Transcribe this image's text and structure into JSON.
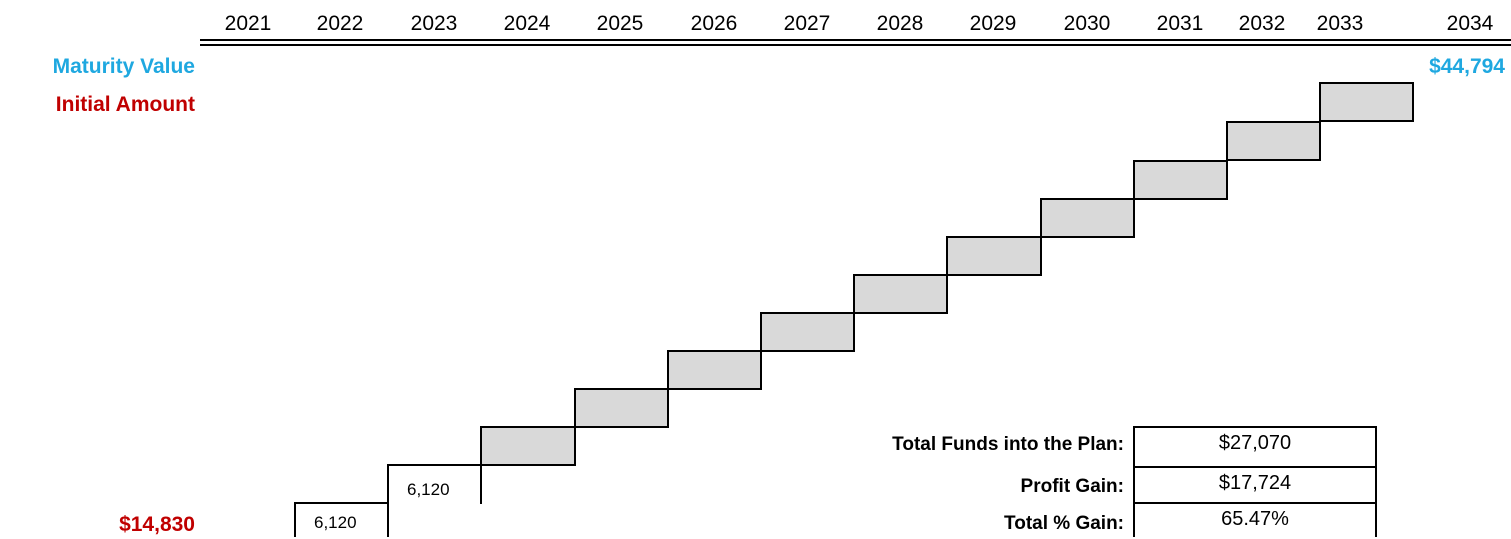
{
  "chart_data": {
    "type": "bar",
    "categories": [
      "2021",
      "2022",
      "2023",
      "2024",
      "2025",
      "2026",
      "2027",
      "2028",
      "2029",
      "2030",
      "2031",
      "2032",
      "2033",
      "2034"
    ],
    "steps": [
      {
        "start": "2022",
        "label": "6,120"
      },
      {
        "start": "2023",
        "label": "6,120"
      },
      {
        "start": "2024",
        "label": ""
      },
      {
        "start": "2025",
        "label": ""
      },
      {
        "start": "2026",
        "label": ""
      },
      {
        "start": "2027",
        "label": ""
      },
      {
        "start": "2028",
        "label": ""
      },
      {
        "start": "2029",
        "label": ""
      },
      {
        "start": "2030",
        "label": ""
      },
      {
        "start": "2031",
        "label": ""
      },
      {
        "start": "2032",
        "label": ""
      },
      {
        "start": "2033",
        "label": ""
      }
    ],
    "maturity_label": "Maturity Value",
    "maturity_value": "$44,794",
    "initial_label": "Initial Amount",
    "initial_value": "$14,830",
    "colors": {
      "maturity": "#1fa8e0",
      "initial": "#c00000",
      "step_fill": "#d9d9d9"
    }
  },
  "summary": [
    {
      "label": "Total Funds into the Plan:",
      "value": "$27,070"
    },
    {
      "label": "Profit Gain:",
      "value": "$17,724"
    },
    {
      "label": "Total % Gain:",
      "value": "65.47%"
    }
  ]
}
